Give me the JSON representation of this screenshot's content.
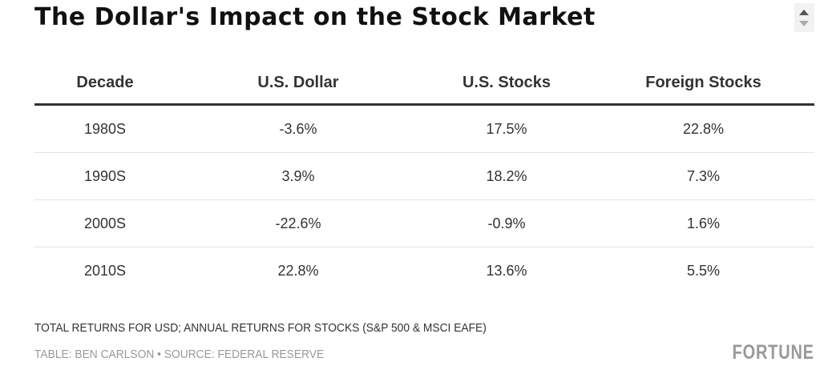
{
  "title": "The Dollar's Impact on the Stock Market",
  "table": {
    "headers": [
      "Decade",
      "U.S. Dollar",
      "U.S. Stocks",
      "Foreign Stocks"
    ],
    "rows": [
      [
        "1980S",
        "-3.6%",
        "17.5%",
        "22.8%"
      ],
      [
        "1990S",
        "3.9%",
        "18.2%",
        "7.3%"
      ],
      [
        "2000S",
        "-22.6%",
        "-0.9%",
        "1.6%"
      ],
      [
        "2010S",
        "22.8%",
        "13.6%",
        "5.5%"
      ]
    ]
  },
  "note": "TOTAL RETURNS FOR USD; ANNUAL RETURNS FOR STOCKS (S&P 500 & MSCI EAFE)",
  "source": "TABLE: BEN CARLSON • SOURCE: FEDERAL RESERVE",
  "logo": "FORTUNE"
}
